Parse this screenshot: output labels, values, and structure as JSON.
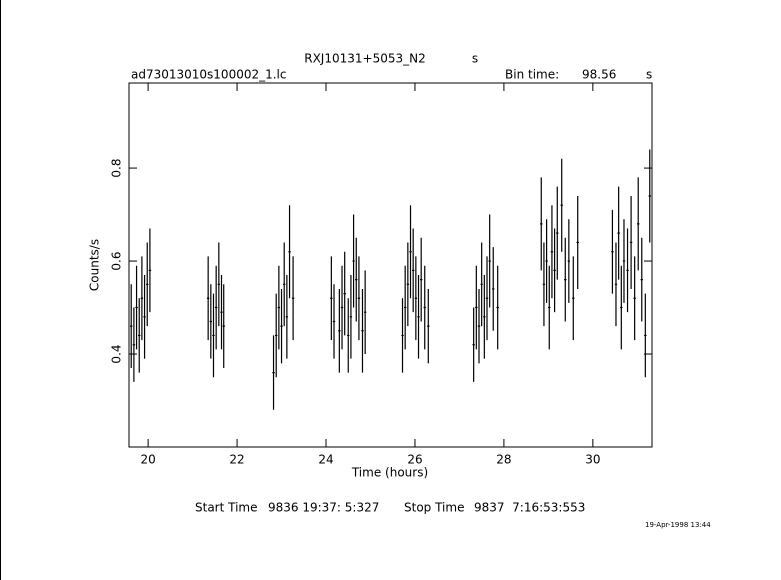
{
  "chart_data": {
    "type": "errorbar",
    "title": "RXJ10131+5053_N2",
    "title_unit": "s",
    "subtitle": "ad73013010s100002_1.lc",
    "bin_time_label": "Bin time:",
    "bin_time": 98.56,
    "bin_time_unit": "s",
    "x_label": "Time (hours)",
    "y_label": "Counts/s",
    "color": "#000000",
    "x": [
      19.62,
      19.68,
      19.74,
      19.8,
      19.86,
      19.92,
      19.98,
      20.04,
      21.35,
      21.41,
      21.47,
      21.53,
      21.59,
      21.65,
      21.7,
      22.82,
      22.88,
      22.94,
      23.0,
      23.06,
      23.12,
      23.18,
      23.26,
      24.12,
      24.18,
      24.3,
      24.36,
      24.42,
      24.5,
      24.56,
      24.62,
      24.68,
      24.74,
      24.82,
      24.88,
      25.72,
      25.78,
      25.84,
      25.9,
      25.96,
      26.02,
      26.08,
      26.14,
      26.22,
      26.3,
      27.32,
      27.38,
      27.44,
      27.5,
      27.56,
      27.62,
      27.68,
      27.76,
      27.86,
      28.84,
      28.9,
      28.96,
      29.02,
      29.08,
      29.14,
      29.2,
      29.3,
      29.38,
      29.46,
      29.56,
      29.66,
      30.44,
      30.52,
      30.58,
      30.64,
      30.7,
      30.78,
      30.86,
      30.94,
      31.02,
      31.1,
      31.18,
      31.28
    ],
    "y": [
      0.46,
      0.42,
      0.5,
      0.44,
      0.52,
      0.48,
      0.55,
      0.58,
      0.52,
      0.47,
      0.44,
      0.5,
      0.55,
      0.49,
      0.46,
      0.36,
      0.44,
      0.5,
      0.46,
      0.55,
      0.48,
      0.62,
      0.52,
      0.52,
      0.47,
      0.45,
      0.5,
      0.53,
      0.44,
      0.48,
      0.6,
      0.56,
      0.52,
      0.45,
      0.49,
      0.44,
      0.5,
      0.55,
      0.62,
      0.58,
      0.52,
      0.48,
      0.56,
      0.5,
      0.46,
      0.42,
      0.5,
      0.46,
      0.55,
      0.48,
      0.52,
      0.6,
      0.54,
      0.5,
      0.68,
      0.55,
      0.6,
      0.5,
      0.62,
      0.58,
      0.66,
      0.72,
      0.56,
      0.6,
      0.52,
      0.64,
      0.62,
      0.55,
      0.66,
      0.5,
      0.6,
      0.58,
      0.64,
      0.52,
      0.68,
      0.56,
      0.44,
      0.74
    ],
    "err": [
      0.09,
      0.08,
      0.09,
      0.08,
      0.09,
      0.09,
      0.09,
      0.09,
      0.09,
      0.08,
      0.09,
      0.09,
      0.09,
      0.08,
      0.09,
      0.08,
      0.09,
      0.09,
      0.08,
      0.09,
      0.09,
      0.1,
      0.09,
      0.09,
      0.08,
      0.09,
      0.09,
      0.09,
      0.08,
      0.09,
      0.1,
      0.09,
      0.09,
      0.09,
      0.09,
      0.08,
      0.09,
      0.09,
      0.1,
      0.09,
      0.09,
      0.09,
      0.09,
      0.09,
      0.08,
      0.08,
      0.09,
      0.08,
      0.09,
      0.09,
      0.09,
      0.1,
      0.09,
      0.09,
      0.1,
      0.09,
      0.09,
      0.09,
      0.1,
      0.09,
      0.1,
      0.1,
      0.09,
      0.09,
      0.09,
      0.1,
      0.09,
      0.09,
      0.1,
      0.09,
      0.09,
      0.09,
      0.1,
      0.09,
      0.1,
      0.09,
      0.09,
      0.1
    ],
    "xlim": [
      19.57,
      31.33
    ],
    "ylim": [
      0.2,
      0.983
    ],
    "xticks": [
      20,
      22,
      24,
      26,
      28,
      30
    ],
    "yticks": [
      0.4,
      0.6,
      0.8
    ],
    "start_label": "Start Time",
    "start_time": "9836 19:37: 5:327",
    "stop_label": "Stop Time",
    "stop_time": "9837  7:16:53:553",
    "date": "19-Apr-1998 13:44"
  }
}
